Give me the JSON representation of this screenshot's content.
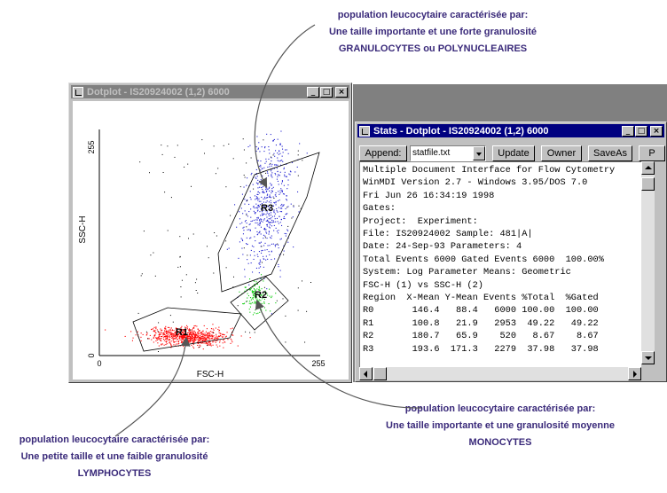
{
  "annotations": {
    "granulocytes": [
      "population leucocytaire caractérisée par:",
      "Une taille importante et une forte granulosité",
      "GRANULOCYTES ou POLYNUCLEAIRES"
    ],
    "monocytes": [
      "population leucocytaire caractérisée par:",
      "Une taille importante et une  granulosité moyenne",
      "MONOCYTES"
    ],
    "lymphocytes": [
      "population leucocytaire caractérisée par:",
      "Une petite taille  et une  faible granulosité",
      "LYMPHOCYTES"
    ]
  },
  "dotplot_window": {
    "title": "Dotplot - IS20924002 (1,2) 6000",
    "controls": [
      "_",
      "□",
      "×"
    ],
    "y_label": "SSC-H",
    "x_label": "FSC-H",
    "y_ticks": [
      "0",
      "255"
    ],
    "x_ticks": [
      "0",
      "255"
    ],
    "regions": [
      "R1",
      "R2",
      "R3"
    ]
  },
  "chart_data": {
    "type": "scatter",
    "xlabel": "FSC-H",
    "ylabel": "SSC-H",
    "xlim": [
      0,
      255
    ],
    "ylim": [
      0,
      255
    ],
    "series": [
      {
        "name": "R1",
        "color": "#ff0000",
        "x_mean": 100.8,
        "y_mean": 21.9,
        "events": 2953
      },
      {
        "name": "R2",
        "color": "#00cc00",
        "x_mean": 180.7,
        "y_mean": 65.9,
        "events": 520
      },
      {
        "name": "R3",
        "color": "#2020d0",
        "x_mean": 193.6,
        "y_mean": 171.3,
        "events": 2279
      }
    ]
  },
  "stats_window": {
    "title": "Stats - Dotplot - IS20924002 (1,2) 6000",
    "controls": [
      "_",
      "□",
      "×"
    ],
    "toolbar": {
      "append": "Append:",
      "file": "statfile.txt",
      "update": "Update",
      "owner": "Owner",
      "saveas": "SaveAs",
      "more": "P"
    },
    "lines": [
      "Multiple Document Interface for Flow Cytometry",
      "WinMDI Version 2.7 - Windows 3.95/DOS 7.0",
      "Fri Jun 26 16:34:19 1998",
      "Gates:",
      "Project:  Experiment:",
      "File: IS20924002 Sample: 481|A|",
      "Date: 24-Sep-93 Parameters: 4",
      "Total Events 6000 Gated Events 6000  100.00%",
      "System: Log Parameter Means: Geometric",
      "FSC-H (1) vs SSC-H (2)",
      "Region  X-Mean Y-Mean Events %Total  %Gated",
      "R0       146.4   88.4   6000 100.00  100.00",
      "R1       100.8   21.9   2953  49.22   49.22",
      "R2       180.7   65.9    520   8.67    8.67",
      "R3       193.6  171.3   2279  37.98   37.98"
    ]
  }
}
